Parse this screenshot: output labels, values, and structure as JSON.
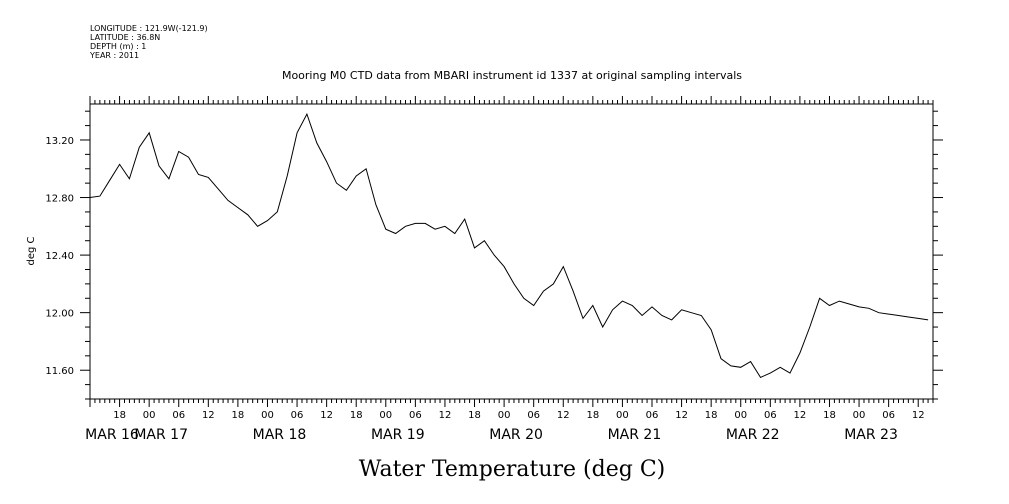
{
  "header": {
    "longitude": "LONGITUDE : 121.9W(-121.9)",
    "latitude": "LATITUDE : 36.8N",
    "depth": "DEPTH (m) : 1",
    "year": "YEAR : 2011"
  },
  "chart_data": {
    "type": "line",
    "title": "Mooring M0 CTD data from MBARI instrument id 1337 at original sampling intervals",
    "xlabel": "Water Temperature (deg C)",
    "ylabel": "deg C",
    "ylim": [
      11.4,
      13.45
    ],
    "xlim": [
      "2011-03-16T12:00",
      "2011-03-23T15:00"
    ],
    "grid": false,
    "yticks": [
      "11.60",
      "12.00",
      "12.40",
      "12.80",
      "13.20"
    ],
    "xtick_hour_labels": [
      "18",
      "00",
      "06",
      "12",
      "18",
      "00",
      "06",
      "12",
      "18",
      "00",
      "06",
      "12",
      "18",
      "00",
      "06",
      "12",
      "18",
      "00",
      "06",
      "12",
      "18",
      "00",
      "06",
      "12",
      "18",
      "00",
      "06",
      "12",
      "18",
      "00",
      "06",
      "12"
    ],
    "xtick_day_labels": [
      "MAR 16",
      "MAR 17",
      "MAR 18",
      "MAR 19",
      "MAR 20",
      "MAR 21",
      "MAR 22",
      "MAR 23"
    ],
    "series": [
      {
        "name": "",
        "color": "#000000",
        "x": [
          "2011-03-16T12:00",
          "2011-03-16T14:00",
          "2011-03-16T16:00",
          "2011-03-16T18:00",
          "2011-03-16T20:00",
          "2011-03-16T22:00",
          "2011-03-17T00:00",
          "2011-03-17T02:00",
          "2011-03-17T04:00",
          "2011-03-17T06:00",
          "2011-03-17T08:00",
          "2011-03-17T10:00",
          "2011-03-17T12:00",
          "2011-03-17T14:00",
          "2011-03-17T16:00",
          "2011-03-17T18:00",
          "2011-03-17T20:00",
          "2011-03-17T22:00",
          "2011-03-18T00:00",
          "2011-03-18T02:00",
          "2011-03-18T04:00",
          "2011-03-18T06:00",
          "2011-03-18T08:00",
          "2011-03-18T10:00",
          "2011-03-18T12:00",
          "2011-03-18T14:00",
          "2011-03-18T16:00",
          "2011-03-18T18:00",
          "2011-03-18T20:00",
          "2011-03-18T22:00",
          "2011-03-19T00:00",
          "2011-03-19T02:00",
          "2011-03-19T04:00",
          "2011-03-19T06:00",
          "2011-03-19T08:00",
          "2011-03-19T10:00",
          "2011-03-19T12:00",
          "2011-03-19T14:00",
          "2011-03-19T16:00",
          "2011-03-19T18:00",
          "2011-03-19T20:00",
          "2011-03-19T22:00",
          "2011-03-20T00:00",
          "2011-03-20T02:00",
          "2011-03-20T04:00",
          "2011-03-20T06:00",
          "2011-03-20T08:00",
          "2011-03-20T10:00",
          "2011-03-20T12:00",
          "2011-03-20T14:00",
          "2011-03-20T16:00",
          "2011-03-20T18:00",
          "2011-03-20T20:00",
          "2011-03-20T22:00",
          "2011-03-21T00:00",
          "2011-03-21T02:00",
          "2011-03-21T04:00",
          "2011-03-21T06:00",
          "2011-03-21T08:00",
          "2011-03-21T10:00",
          "2011-03-21T12:00",
          "2011-03-21T14:00",
          "2011-03-21T16:00",
          "2011-03-21T18:00",
          "2011-03-21T20:00",
          "2011-03-21T22:00",
          "2011-03-22T00:00",
          "2011-03-22T02:00",
          "2011-03-22T04:00",
          "2011-03-22T06:00",
          "2011-03-22T08:00",
          "2011-03-22T10:00",
          "2011-03-22T12:00",
          "2011-03-22T14:00",
          "2011-03-22T16:00",
          "2011-03-22T18:00",
          "2011-03-22T20:00",
          "2011-03-22T22:00",
          "2011-03-23T00:00",
          "2011-03-23T02:00",
          "2011-03-23T04:00",
          "2011-03-23T06:00",
          "2011-03-23T08:00",
          "2011-03-23T10:00",
          "2011-03-23T12:00",
          "2011-03-23T14:00"
        ],
        "y": [
          12.8,
          12.81,
          12.92,
          13.03,
          12.93,
          13.15,
          13.25,
          13.02,
          12.93,
          13.12,
          13.08,
          12.96,
          12.94,
          12.86,
          12.78,
          12.73,
          12.68,
          12.6,
          12.64,
          12.7,
          12.95,
          13.25,
          13.38,
          13.18,
          13.05,
          12.9,
          12.85,
          12.95,
          13.0,
          12.75,
          12.58,
          12.55,
          12.6,
          12.62,
          12.62,
          12.58,
          12.6,
          12.55,
          12.65,
          12.45,
          12.5,
          12.4,
          12.32,
          12.2,
          12.1,
          12.05,
          12.15,
          12.2,
          12.32,
          12.15,
          11.96,
          12.05,
          11.9,
          12.02,
          12.08,
          12.05,
          11.98,
          12.04,
          11.98,
          11.95,
          12.02,
          12.0,
          11.98,
          11.88,
          11.68,
          11.63,
          11.62,
          11.66,
          11.55,
          11.58,
          11.62,
          11.58,
          11.72,
          11.9,
          12.1,
          12.05,
          12.08,
          12.06,
          12.04,
          12.03,
          12.0,
          11.99,
          11.98,
          11.97,
          11.96,
          11.95
        ]
      }
    ]
  }
}
